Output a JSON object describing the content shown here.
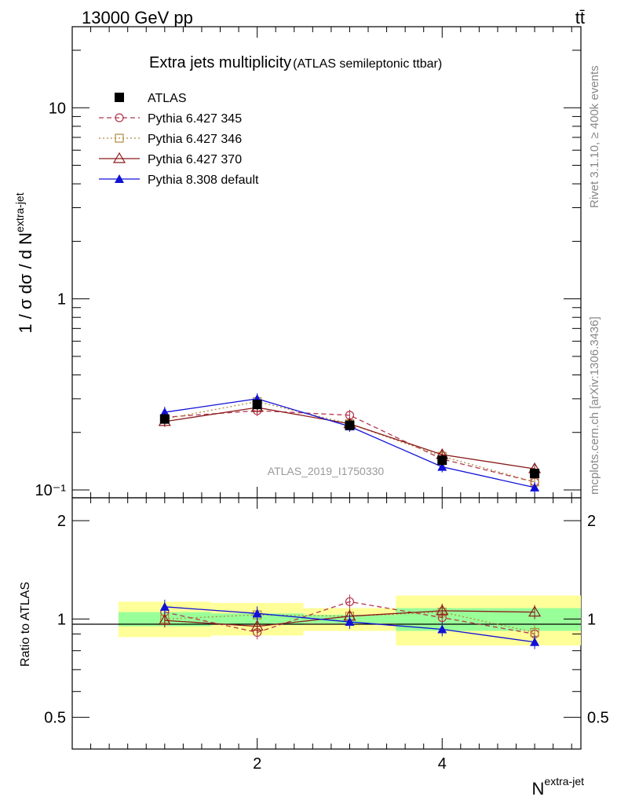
{
  "header": {
    "left": "13000 GeV pp",
    "right": "tt̄"
  },
  "side_text": {
    "rivet": "Rivet 3.1.10, ≥ 400k events",
    "mcplots": "mcplots.cern.ch [arXiv:1306.3436]"
  },
  "watermark": "ATLAS_2019_I1750330",
  "main_title": "Extra jets multiplicity",
  "main_subtitle": "(ATLAS semileptonic ttbar)",
  "ylabel_main": "1 / σ dσ / d N",
  "ylabel_main_sup": "extra-jet",
  "ylabel_ratio": "Ratio to ATLAS",
  "xlabel": "N",
  "xlabel_sup": "extra-jet",
  "colors": {
    "atlas": "#000000",
    "p345": "#b5364f",
    "p346": "#b08a3c",
    "p370": "#8b1a1a",
    "p8": "#1010d8",
    "band_inner": "#99ff99",
    "band_outer": "#ffff99"
  },
  "chart_data": {
    "type": "line",
    "x": [
      1,
      2,
      3,
      4,
      5
    ],
    "xlim": [
      0.0,
      5.5
    ],
    "x_ticks": [
      "2",
      "4"
    ],
    "main": {
      "yscale": "log",
      "ylim": [
        0.1,
        20
      ],
      "y_tick_labels": [
        "10⁻¹",
        "1",
        "10"
      ],
      "series": [
        {
          "name": "ATLAS",
          "marker": "filled-square",
          "values": [
            0.235,
            0.28,
            0.218,
            0.143,
            0.122
          ]
        },
        {
          "name": "Pythia 6.427 345",
          "marker": "open-circle",
          "linestyle": "dashed",
          "values": [
            0.24,
            0.26,
            0.246,
            0.145,
            0.11
          ]
        },
        {
          "name": "Pythia 6.427 346",
          "marker": "open-square",
          "linestyle": "dotted",
          "values": [
            0.235,
            0.29,
            0.222,
            0.15,
            0.11
          ]
        },
        {
          "name": "Pythia 6.427 370",
          "marker": "open-triangle",
          "linestyle": "solid",
          "values": [
            0.228,
            0.27,
            0.222,
            0.153,
            0.129
          ]
        },
        {
          "name": "Pythia 8.308 default",
          "marker": "filled-triangle",
          "linestyle": "solid",
          "values": [
            0.255,
            0.3,
            0.215,
            0.132,
            0.103
          ]
        }
      ]
    },
    "ratio": {
      "ylabel": "Ratio to ATLAS",
      "ylim": [
        0.4,
        2.35
      ],
      "y_tick_labels": [
        "0.5",
        "1",
        "2"
      ],
      "band_inner": [
        [
          0.95,
          1.05
        ],
        [
          0.96,
          1.04
        ],
        [
          0.97,
          1.03
        ],
        [
          0.92,
          1.08
        ],
        [
          0.92,
          1.08
        ]
      ],
      "band_outer": [
        [
          0.88,
          1.13
        ],
        [
          0.89,
          1.12
        ],
        [
          0.92,
          1.08
        ],
        [
          0.83,
          1.18
        ],
        [
          0.83,
          1.18
        ]
      ],
      "series": [
        {
          "name": "Pythia 6.427 345",
          "values": [
            1.05,
            0.91,
            1.13,
            1.01,
            0.9
          ]
        },
        {
          "name": "Pythia 6.427 346",
          "values": [
            1.0,
            1.03,
            1.02,
            1.05,
            0.91
          ]
        },
        {
          "name": "Pythia 6.427 370",
          "values": [
            0.99,
            0.95,
            1.02,
            1.06,
            1.05
          ]
        },
        {
          "name": "Pythia 8.308 default",
          "values": [
            1.09,
            1.04,
            0.98,
            0.93,
            0.85
          ]
        }
      ]
    },
    "legend_position": "top-left"
  }
}
